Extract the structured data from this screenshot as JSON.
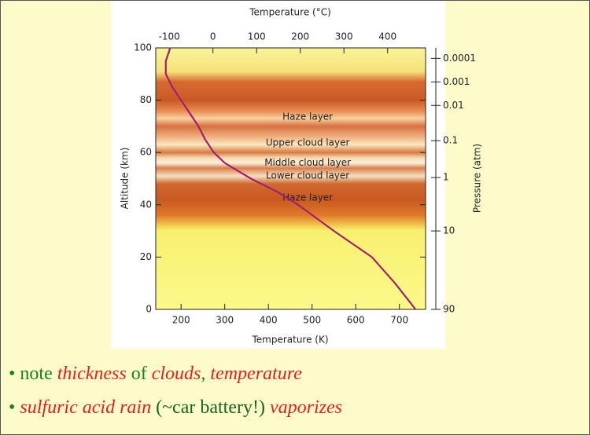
{
  "chart_data": {
    "type": "line",
    "title": "Temperature (°C)",
    "xlabel": "Temperature (K)",
    "ylabel": "Altitude (km)",
    "y2label": "Pressure (atm)",
    "xlim": [
      142,
      760
    ],
    "xticks": [
      200,
      300,
      400,
      500,
      600,
      700
    ],
    "x2lim": [
      -131,
      487
    ],
    "x2ticks": [
      -100,
      0,
      100,
      200,
      300,
      400
    ],
    "ylim": [
      0,
      100
    ],
    "yticks": [
      0,
      20,
      40,
      60,
      80,
      100
    ],
    "pressure_axis": {
      "pressures": [
        0.0001,
        0.001,
        0.01,
        0.1,
        1,
        10,
        90
      ],
      "altitudes": [
        96,
        87,
        78,
        64.5,
        50.4,
        30,
        0
      ]
    },
    "series": [
      {
        "color": "#a21f6c",
        "x": [
          737,
          690,
          637,
          550,
          468,
          420,
          360,
          330,
          300,
          275,
          255,
          240,
          220,
          200,
          180,
          165,
          165,
          175
        ],
        "values": [
          0,
          10,
          20,
          30,
          40,
          45,
          50,
          53,
          56,
          60,
          65,
          70,
          75,
          80,
          85,
          90,
          95,
          100
        ]
      }
    ],
    "annotations": [
      {
        "text": "Haze layer",
        "x": 490,
        "y": 73.5
      },
      {
        "text": "Upper cloud layer",
        "x": 490,
        "y": 63.6
      },
      {
        "text": "Middle cloud layer",
        "x": 490,
        "y": 56
      },
      {
        "text": "Lower cloud layer",
        "x": 490,
        "y": 51
      },
      {
        "text": "Haze layer",
        "x": 490,
        "y": 42.6
      }
    ]
  },
  "bullet": "•",
  "bullets": [
    [
      {
        "text": "note ",
        "color": "#1f7f1f",
        "italic": false
      },
      {
        "text": "thickness",
        "color": "#e0221b",
        "italic": true
      },
      {
        "text": " of ",
        "color": "#1f7f1f",
        "italic": false
      },
      {
        "text": "clouds",
        "color": "#e0221b",
        "italic": true
      },
      {
        "text": ", ",
        "color": "#1f7f1f",
        "italic": false
      },
      {
        "text": "temperature",
        "color": "#e0221b",
        "italic": true
      }
    ],
    [
      {
        "text": "sulfuric acid rain",
        "color": "#e0221b",
        "italic": true
      },
      {
        "text": " (~car battery!) ",
        "color": "#1f5f1f",
        "italic": false
      },
      {
        "text": "vaporizes",
        "color": "#e0221b",
        "italic": true
      }
    ]
  ]
}
